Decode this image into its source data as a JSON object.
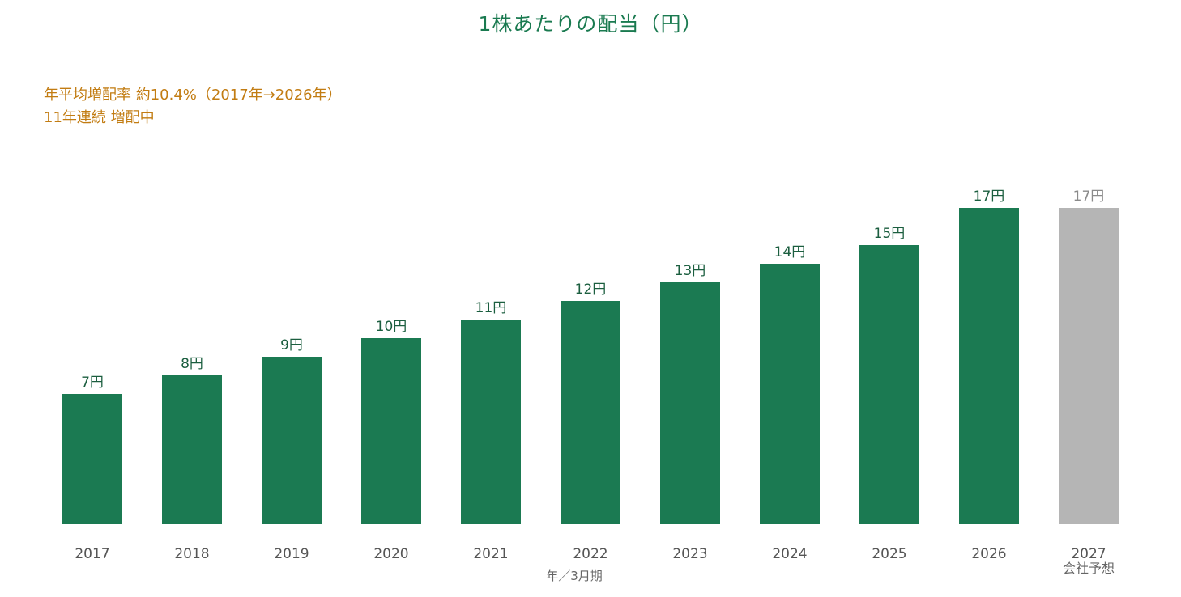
{
  "title": "1株あたりの配当（円）",
  "notes": {
    "line1": "年平均増配率 約10.4%（2017年→2026年）",
    "line2": "11年連続 増配中"
  },
  "colors": {
    "title": "#1a7a50",
    "notes": "#c27c12",
    "actual_bar": "#1b7a52",
    "forecast_bar": "#b5b5b5",
    "actual_label": "#1b5e3f",
    "forecast_label": "#8a8a8a"
  },
  "chart_data": {
    "type": "bar",
    "title": "1株あたりの配当（円）",
    "xlabel": "年／3月期",
    "ylabel": "",
    "categories": [
      "2017",
      "2018",
      "2019",
      "2020",
      "2021",
      "2022",
      "2023",
      "2024",
      "2025",
      "2026",
      "2027"
    ],
    "category_sublabels": [
      "",
      "",
      "",
      "",
      "",
      "",
      "",
      "",
      "",
      "",
      "会社予想"
    ],
    "values": [
      7,
      8,
      9,
      10,
      11,
      12,
      13,
      14,
      15,
      17,
      17
    ],
    "value_labels": [
      "7円",
      "8円",
      "9円",
      "10円",
      "11円",
      "12円",
      "13円",
      "14円",
      "15円",
      "17円",
      "17円"
    ],
    "bar_kind": [
      "actual",
      "actual",
      "actual",
      "actual",
      "actual",
      "actual",
      "actual",
      "actual",
      "actual",
      "actual",
      "forecast"
    ],
    "ylim": [
      0,
      17
    ],
    "grid": false,
    "legend": "none"
  }
}
